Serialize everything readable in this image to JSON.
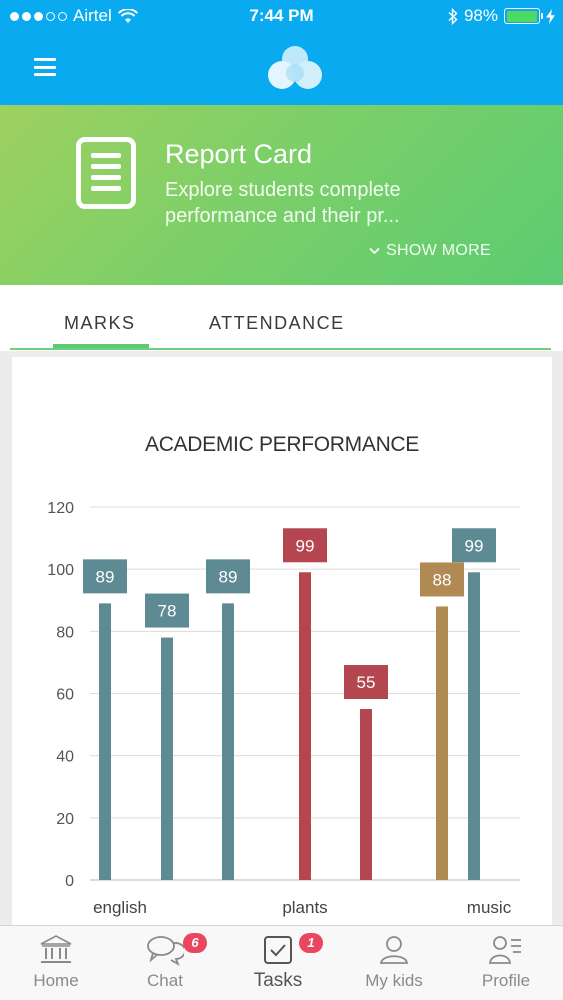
{
  "status_bar": {
    "carrier": "Airtel",
    "time": "7:44 PM",
    "battery_percent": "98%",
    "battery_level": 0.98,
    "signal_bars": 3
  },
  "header": {
    "menu_icon": "hamburger-menu-icon",
    "logo_icon": "cloud-logo-icon"
  },
  "banner": {
    "icon": "document-icon",
    "title": "Report Card",
    "description": "Explore students complete performance and their pr...",
    "show_more": "SHOW MORE"
  },
  "tabs": [
    {
      "label": "MARKS",
      "active": true
    },
    {
      "label": "ATTENDANCE",
      "active": false
    }
  ],
  "chart": {
    "title": "ACADEMIC PERFORMANCE"
  },
  "chart_data": {
    "type": "bar",
    "title": "ACADEMIC PERFORMANCE",
    "ylim": [
      0,
      120
    ],
    "yticks": [
      0,
      20,
      40,
      60,
      80,
      100,
      120
    ],
    "grid": true,
    "x_labels": [
      "english",
      "plants",
      "music"
    ],
    "bars": [
      {
        "group": "english",
        "value": 89,
        "color": "#5e8a93"
      },
      {
        "group": "english",
        "value": 78,
        "color": "#5e8a93"
      },
      {
        "group": "english",
        "value": 89,
        "color": "#5e8a93"
      },
      {
        "group": "plants",
        "value": 99,
        "color": "#b3464f"
      },
      {
        "group": "plants",
        "value": 55,
        "color": "#b3464f"
      },
      {
        "group": "music",
        "value": 88,
        "color": "#b08a52"
      },
      {
        "group": "music",
        "value": 99,
        "color": "#5e8a93"
      }
    ]
  },
  "bottom_nav": [
    {
      "label": "Home",
      "icon": "bank-home-icon",
      "badge": ""
    },
    {
      "label": "Chat",
      "icon": "chat-bubbles-icon",
      "badge": "6"
    },
    {
      "label": "Tasks",
      "icon": "checkbox-tasks-icon",
      "badge": "1"
    },
    {
      "label": "My kids",
      "icon": "person-icon",
      "badge": ""
    },
    {
      "label": "Profile",
      "icon": "profile-list-icon",
      "badge": ""
    }
  ]
}
